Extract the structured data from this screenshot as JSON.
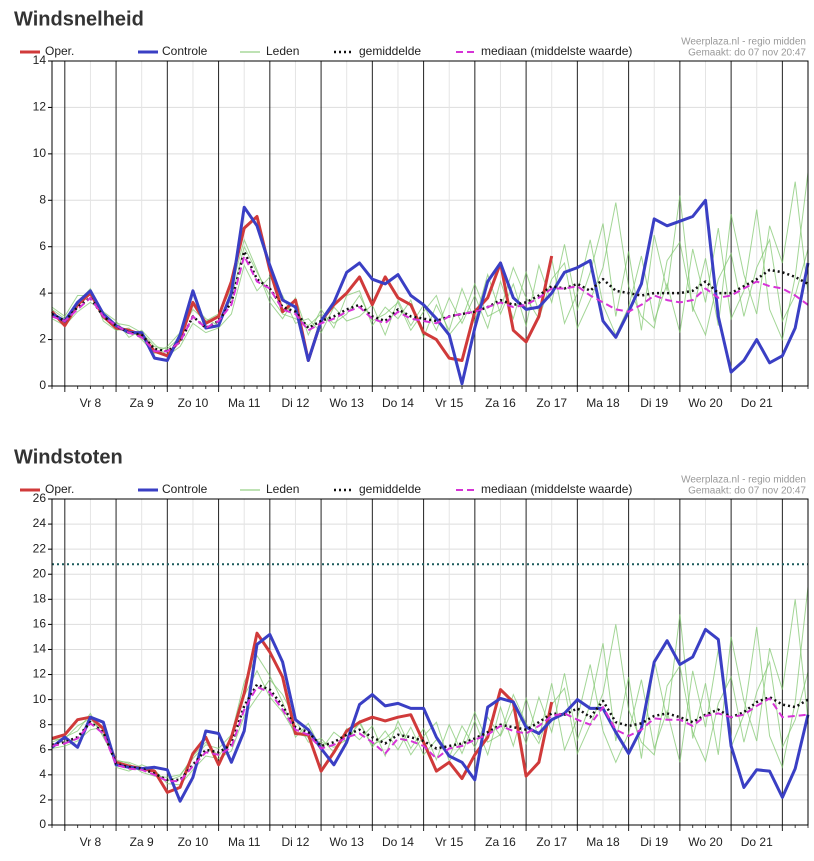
{
  "chart_data": [
    {
      "type": "line",
      "title": "Windsnelheid",
      "source": "Weerplaza.nl - regio midden",
      "created": "Gemaakt: do 07 nov 20:47",
      "categories": [
        null,
        null,
        null,
        "Vr 8",
        null,
        null,
        null,
        "Za 9",
        null,
        null,
        null,
        "Zo 10",
        null,
        null,
        null,
        "Ma 11",
        null,
        null,
        null,
        "Di 12",
        null,
        null,
        null,
        "Wo 13",
        null,
        null,
        null,
        "Do 14",
        null,
        null,
        null,
        "Vr 15",
        null,
        null,
        null,
        "Za 16",
        null,
        null,
        null,
        "Zo 17",
        null,
        null,
        null,
        "Ma 18",
        null,
        null,
        null,
        "Di 19",
        null,
        null,
        null,
        "Wo 20",
        null,
        null,
        null,
        "Do 21",
        null,
        null,
        null,
        null
      ],
      "ylim": [
        0,
        14
      ],
      "yticks": [
        0,
        2,
        4,
        6,
        8,
        10,
        12,
        14
      ],
      "grid": true,
      "series": [
        {
          "name": "Oper.",
          "color": "#d03a3a",
          "style": "solid",
          "values": [
            3.2,
            2.6,
            3.5,
            4.0,
            3.0,
            2.5,
            2.4,
            2.2,
            1.5,
            1.3,
            2.0,
            3.6,
            2.7,
            3.0,
            4.5,
            6.8,
            7.3,
            5.0,
            3.2,
            3.7,
            1.1,
            2.8,
            3.5,
            4.0,
            4.7,
            3.5,
            4.7,
            3.8,
            3.5,
            2.3,
            2.0,
            1.2,
            1.1,
            3.2,
            3.8,
            5.3,
            2.4,
            1.9,
            3.0,
            5.6,
            null,
            null,
            null,
            null,
            null,
            null,
            null,
            null,
            null,
            null,
            null,
            null,
            null,
            null,
            null,
            null,
            null,
            null,
            null,
            null
          ]
        },
        {
          "name": "Controle",
          "color": "#3a3fc4",
          "style": "solid",
          "values": [
            3.1,
            2.8,
            3.6,
            4.1,
            3.1,
            2.6,
            2.3,
            2.3,
            1.2,
            1.1,
            2.2,
            4.1,
            2.5,
            2.6,
            4.0,
            7.7,
            6.9,
            5.2,
            3.7,
            3.4,
            1.1,
            2.8,
            3.6,
            4.9,
            5.3,
            4.6,
            4.4,
            4.8,
            3.9,
            3.5,
            2.9,
            2.2,
            0.1,
            2.5,
            4.5,
            5.3,
            3.8,
            3.3,
            3.4,
            4.0,
            4.9,
            5.1,
            5.4,
            2.8,
            2.1,
            3.2,
            4.4,
            7.2,
            6.9,
            7.1,
            7.3,
            8.0,
            3.0,
            0.6,
            1.1,
            2.0,
            1.0,
            1.3,
            2.5,
            5.3
          ]
        },
        {
          "name": "Leden",
          "color": "#7cc46a",
          "style": "thin",
          "members": [
            [
              3.3,
              2.9,
              3.6,
              4.2,
              2.8,
              2.4,
              2.5,
              2.0,
              1.4,
              1.7,
              2.3,
              3.3,
              2.8,
              3.1,
              4.2,
              6.3,
              5.0,
              3.6,
              2.9,
              3.8,
              2.2,
              3.3,
              2.5,
              3.9,
              4.1,
              2.6,
              3.4,
              2.9,
              3.7,
              2.1,
              3.5,
              2.4,
              4.2,
              2.8,
              4.8,
              3.1,
              4.4,
              2.6,
              5.2,
              3.6,
              6.1,
              3.3,
              4.9,
              7.0,
              3.0,
              5.8,
              2.4,
              6.5,
              4.1,
              8.2,
              3.2,
              5.5,
              2.6,
              7.4,
              4.8,
              3.1,
              6.9,
              5.3,
              8.8,
              4.0
            ],
            [
              2.9,
              2.6,
              3.2,
              3.6,
              3.2,
              2.8,
              2.1,
              2.4,
              1.8,
              1.3,
              1.7,
              2.7,
              2.3,
              2.5,
              3.1,
              5.2,
              4.1,
              4.7,
              3.9,
              2.7,
              2.9,
              2.3,
              3.4,
              2.8,
              3.0,
              3.5,
              2.2,
              3.7,
              2.6,
              3.5,
              2.4,
              3.8,
              2.7,
              3.9,
              2.5,
              4.5,
              2.9,
              4.9,
              3.2,
              5.5,
              2.7,
              4.0,
              6.3,
              3.5,
              2.2,
              3.4,
              5.6,
              2.8,
              4.4,
              2.3,
              5.9,
              3.6,
              6.8,
              2.9,
              4.1,
              7.6,
              3.3,
              2.0,
              4.7,
              9.2
            ],
            [
              3.4,
              3.0,
              3.9,
              3.9,
              2.9,
              2.7,
              2.6,
              2.3,
              1.7,
              1.6,
              2.1,
              3.5,
              2.9,
              2.6,
              3.8,
              6.0,
              4.9,
              3.9,
              3.1,
              2.9,
              2.6,
              3.1,
              2.7,
              3.1,
              3.9,
              2.8,
              3.1,
              3.6,
              2.4,
              3.2,
              3.9,
              2.2,
              2.9,
              4.4,
              3.0,
              3.3,
              5.1,
              3.8,
              2.9,
              4.6,
              5.3,
              2.5,
              3.7,
              5.1,
              7.9,
              4.3,
              3.0,
              2.5,
              5.4,
              6.2,
              3.4,
              2.2,
              4.6,
              5.7,
              3.0,
              5.1,
              6.3,
              2.8,
              3.9,
              5.9
            ]
          ]
        },
        {
          "name": "gemiddelde",
          "color": "#111111",
          "style": "dotted",
          "values": [
            3.1,
            2.8,
            3.4,
            3.8,
            3.0,
            2.6,
            2.3,
            2.2,
            1.6,
            1.5,
            1.9,
            3.0,
            2.5,
            2.8,
            3.6,
            5.8,
            4.6,
            4.2,
            3.4,
            3.2,
            2.5,
            2.8,
            3.0,
            3.3,
            3.5,
            3.0,
            2.8,
            3.3,
            3.0,
            2.9,
            2.8,
            3.0,
            3.1,
            3.2,
            3.4,
            3.7,
            3.5,
            3.6,
            3.9,
            4.3,
            4.2,
            4.4,
            4.1,
            4.6,
            4.1,
            4.0,
            3.9,
            4.0,
            4.0,
            4.0,
            4.1,
            4.5,
            4.0,
            4.0,
            4.3,
            4.6,
            5.0,
            4.9,
            4.7,
            4.4
          ]
        },
        {
          "name": "mediaan (middelste waarde)",
          "color": "#d633d6",
          "style": "dashed",
          "values": [
            3.0,
            2.8,
            3.3,
            3.8,
            3.0,
            2.6,
            2.3,
            2.1,
            1.5,
            1.5,
            1.9,
            3.0,
            2.5,
            2.8,
            3.5,
            5.6,
            4.5,
            4.2,
            3.3,
            3.1,
            2.4,
            2.7,
            2.9,
            3.2,
            3.4,
            2.9,
            2.7,
            3.2,
            2.9,
            2.8,
            2.7,
            3.0,
            3.1,
            3.2,
            3.4,
            3.6,
            3.4,
            3.5,
            3.8,
            4.2,
            4.2,
            4.3,
            3.9,
            3.6,
            3.3,
            3.2,
            3.5,
            3.9,
            3.7,
            3.6,
            3.7,
            4.2,
            3.8,
            3.9,
            4.2,
            4.5,
            4.3,
            4.2,
            3.9,
            3.5
          ]
        }
      ]
    },
    {
      "type": "line",
      "title": "Windstoten",
      "source": "Weerplaza.nl - regio midden",
      "created": "Gemaakt: do 07 nov 20:47",
      "categories": [
        null,
        null,
        null,
        "Vr 8",
        null,
        null,
        null,
        "Za 9",
        null,
        null,
        null,
        "Zo 10",
        null,
        null,
        null,
        "Ma 11",
        null,
        null,
        null,
        "Di 12",
        null,
        null,
        null,
        "Wo 13",
        null,
        null,
        null,
        "Do 14",
        null,
        null,
        null,
        "Vr 15",
        null,
        null,
        null,
        "Za 16",
        null,
        null,
        null,
        "Zo 17",
        null,
        null,
        null,
        "Ma 18",
        null,
        null,
        null,
        "Di 19",
        null,
        null,
        null,
        "Wo 20",
        null,
        null,
        null,
        "Do 21",
        null,
        null,
        null,
        null
      ],
      "ylim": [
        0,
        26
      ],
      "yticks": [
        0,
        2,
        4,
        6,
        8,
        10,
        12,
        14,
        16,
        18,
        20,
        22,
        24,
        26
      ],
      "grid": true,
      "threshold": 20.8,
      "threshold_color": "#1d5c5c",
      "series": [
        {
          "name": "Oper.",
          "color": "#d03a3a",
          "style": "solid",
          "values": [
            6.9,
            7.2,
            8.4,
            8.6,
            7.7,
            5.0,
            4.7,
            4.5,
            4.3,
            2.6,
            3.0,
            5.7,
            7.0,
            4.8,
            7.0,
            10.5,
            15.3,
            13.8,
            11.8,
            7.3,
            7.2,
            4.3,
            5.8,
            7.5,
            8.2,
            8.6,
            8.3,
            8.6,
            8.8,
            6.6,
            4.3,
            5.0,
            3.7,
            5.6,
            7.0,
            10.8,
            9.8,
            3.9,
            5.0,
            9.8,
            null,
            null,
            null,
            null,
            null,
            null,
            null,
            null,
            null,
            null,
            null,
            null,
            null,
            null,
            null,
            null,
            null,
            null,
            null,
            null
          ]
        },
        {
          "name": "Controle",
          "color": "#3a3fc4",
          "style": "solid",
          "values": [
            6.2,
            7.0,
            6.2,
            8.6,
            8.2,
            4.8,
            4.6,
            4.5,
            4.6,
            4.4,
            1.9,
            3.8,
            7.5,
            7.3,
            5.0,
            7.5,
            14.4,
            15.2,
            13.0,
            8.4,
            7.6,
            6.1,
            4.8,
            6.6,
            9.6,
            10.4,
            9.5,
            9.7,
            9.3,
            9.3,
            7.0,
            5.5,
            5.0,
            3.6,
            9.4,
            10.1,
            9.8,
            7.8,
            7.3,
            8.4,
            8.9,
            10.0,
            9.3,
            9.3,
            7.4,
            5.7,
            7.7,
            13.0,
            14.7,
            12.8,
            13.4,
            15.6,
            14.8,
            6.3,
            3.0,
            4.4,
            4.3,
            2.2,
            4.5,
            8.8
          ]
        },
        {
          "name": "Leden",
          "color": "#7cc46a",
          "style": "thin",
          "members": [
            [
              6.6,
              7.0,
              7.5,
              8.9,
              7.0,
              5.2,
              4.9,
              4.2,
              3.9,
              3.8,
              4.0,
              5.3,
              6.4,
              6.1,
              7.2,
              11.4,
              13.5,
              11.9,
              9.8,
              7.0,
              8.1,
              6.0,
              7.4,
              6.6,
              8.3,
              6.2,
              7.5,
              6.0,
              7.8,
              5.6,
              6.8,
              5.4,
              7.9,
              6.2,
              8.6,
              7.1,
              9.3,
              6.5,
              10.2,
              7.4,
              12.1,
              6.8,
              9.6,
              14.5,
              6.7,
              11.8,
              5.3,
              13.2,
              8.4,
              16.8,
              6.9,
              11.3,
              5.6,
              15.0,
              9.9,
              6.7,
              14.1,
              10.8,
              18.0,
              8.4
            ],
            [
              6.1,
              6.3,
              6.7,
              7.6,
              7.8,
              4.6,
              4.3,
              4.8,
              4.4,
              3.3,
              3.2,
              4.4,
              5.5,
              5.3,
              5.9,
              8.7,
              10.2,
              11.6,
              10.4,
              8.4,
              6.6,
              6.9,
              5.8,
              7.7,
              6.8,
              7.9,
              5.5,
              8.3,
              6.1,
              7.7,
              5.2,
              8.0,
              5.7,
              8.3,
              5.6,
              9.4,
              6.3,
              10.1,
              6.9,
              11.3,
              6.0,
              8.5,
              12.8,
              7.5,
              5.0,
              7.3,
              11.6,
              6.1,
              9.1,
              5.0,
              12.3,
              7.8,
              14.0,
              6.2,
              8.8,
              15.8,
              7.1,
              4.6,
              9.8,
              19.0
            ],
            [
              6.8,
              6.9,
              7.9,
              8.5,
              7.2,
              5.1,
              5.0,
              4.6,
              4.2,
              3.5,
              3.9,
              5.5,
              6.6,
              5.5,
              6.9,
              10.3,
              12.3,
              10.2,
              9.0,
              7.3,
              7.0,
              6.6,
              6.2,
              6.8,
              8.1,
              6.4,
              6.9,
              7.8,
              5.6,
              7.1,
              8.2,
              5.1,
              6.4,
              9.0,
              6.6,
              7.2,
              10.4,
              8.1,
              6.5,
              9.6,
              10.9,
              5.7,
              8.0,
              10.5,
              16.0,
              9.2,
              6.6,
              5.6,
              11.1,
              12.7,
              7.4,
              5.1,
              9.7,
              11.8,
              6.6,
              10.6,
              13.0,
              6.2,
              8.4,
              12.2
            ]
          ]
        },
        {
          "name": "gemiddelde",
          "color": "#111111",
          "style": "dotted",
          "values": [
            6.4,
            6.6,
            7.0,
            8.2,
            7.4,
            4.9,
            4.6,
            4.5,
            4.1,
            3.6,
            3.6,
            4.8,
            6.0,
            5.8,
            6.4,
            9.5,
            11.2,
            10.8,
            9.5,
            7.8,
            7.4,
            6.3,
            6.6,
            7.2,
            7.6,
            7.0,
            6.5,
            7.2,
            7.0,
            6.7,
            6.1,
            6.3,
            6.5,
            6.9,
            7.4,
            8.0,
            7.8,
            7.6,
            8.2,
            8.9,
            8.8,
            9.3,
            8.6,
            9.9,
            8.2,
            7.9,
            8.1,
            8.7,
            8.9,
            8.6,
            8.2,
            8.8,
            9.2,
            8.6,
            9.0,
            9.8,
            10.2,
            9.6,
            9.4,
            10.0
          ]
        },
        {
          "name": "mediaan (middelste waarde)",
          "color": "#d633d6",
          "style": "dashed",
          "values": [
            6.3,
            6.5,
            6.9,
            8.1,
            7.3,
            4.8,
            4.5,
            4.4,
            4.0,
            3.5,
            3.5,
            4.7,
            5.8,
            5.6,
            6.2,
            9.2,
            11.0,
            10.6,
            9.2,
            7.6,
            7.2,
            6.1,
            6.4,
            7.0,
            7.3,
            6.6,
            5.7,
            6.9,
            6.7,
            6.3,
            5.3,
            6.1,
            6.3,
            6.8,
            7.2,
            7.9,
            7.5,
            7.3,
            7.9,
            8.7,
            8.9,
            8.4,
            8.0,
            9.4,
            7.6,
            7.1,
            7.6,
            8.5,
            8.4,
            8.4,
            7.9,
            8.7,
            8.9,
            8.6,
            8.8,
            9.5,
            10.1,
            8.6,
            8.7,
            8.8
          ]
        }
      ]
    }
  ]
}
